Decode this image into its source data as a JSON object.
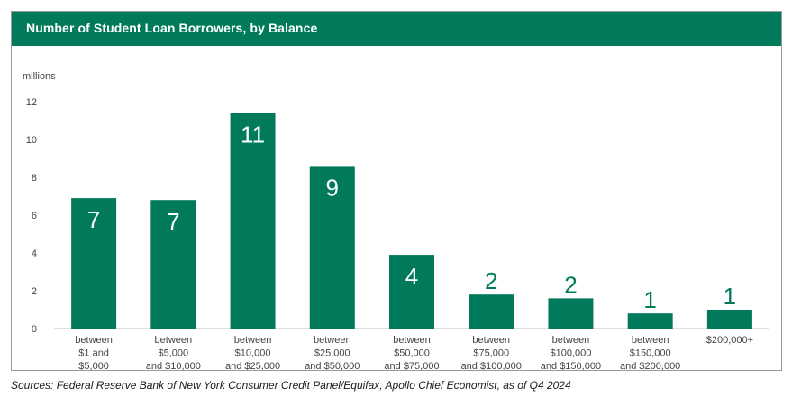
{
  "header": {
    "title": "Number of Student Loan Borrowers, by Balance"
  },
  "footer": {
    "source": "Sources: Federal Reserve Bank of New York Consumer Credit Panel/Equifax, Apollo Chief Economist, as of Q4 2024"
  },
  "colors": {
    "bar": "#007a5a",
    "header": "#007a5a",
    "label_inside": "#ffffff",
    "label_outside": "#007a5a"
  },
  "chart_data": {
    "type": "bar",
    "title": "Number of Student Loan Borrowers, by Balance",
    "ylabel": "millions",
    "xlabel": "",
    "ylim": [
      0,
      12
    ],
    "yticks": [
      "0",
      "2",
      "4",
      "6",
      "8",
      "10",
      "12"
    ],
    "grid": false,
    "categories": [
      [
        "between",
        "$1 and",
        "$5,000"
      ],
      [
        "between",
        "$5,000",
        "and $10,000"
      ],
      [
        "between",
        "$10,000",
        "and $25,000"
      ],
      [
        "between",
        "$25,000",
        "and $50,000"
      ],
      [
        "between",
        "$50,000",
        "and $75,000"
      ],
      [
        "between",
        "$75,000",
        "and $100,000"
      ],
      [
        "between",
        "$100,000",
        "and $150,000"
      ],
      [
        "between",
        "$150,000",
        "and $200,000"
      ],
      [
        "$200,000+"
      ]
    ],
    "values": [
      6.9,
      6.8,
      11.4,
      8.6,
      3.9,
      1.8,
      1.6,
      0.8,
      1.0
    ],
    "data_labels": [
      "7",
      "7",
      "11",
      "9",
      "4",
      "2",
      "2",
      "1",
      "1"
    ]
  }
}
